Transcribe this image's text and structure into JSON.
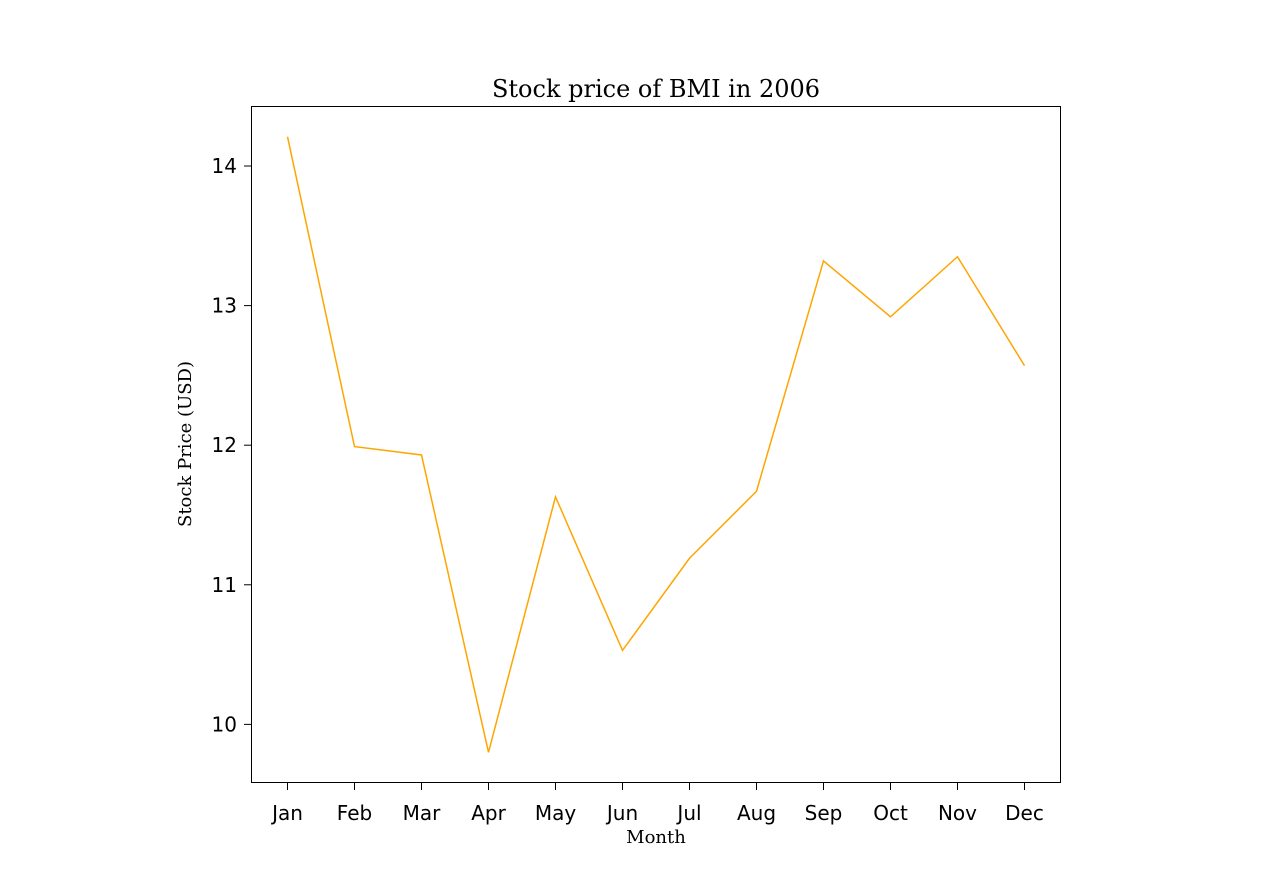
{
  "chart_data": {
    "type": "line",
    "title": "Stock price of BMI in 2006",
    "xlabel": "Month",
    "ylabel": "Stock Price (USD)",
    "categories": [
      "Jan",
      "Feb",
      "Mar",
      "Apr",
      "May",
      "Jun",
      "Jul",
      "Aug",
      "Sep",
      "Oct",
      "Nov",
      "Dec"
    ],
    "series": [
      {
        "values": [
          14.21,
          11.99,
          11.93,
          9.8,
          11.63,
          10.53,
          11.19,
          11.67,
          13.32,
          12.92,
          13.35,
          12.57
        ],
        "color": "#FFA500"
      }
    ],
    "yticks": [
      10,
      11,
      12,
      13,
      14
    ],
    "ylim": [
      9.58,
      14.43
    ],
    "grid": false,
    "legend": "none"
  }
}
